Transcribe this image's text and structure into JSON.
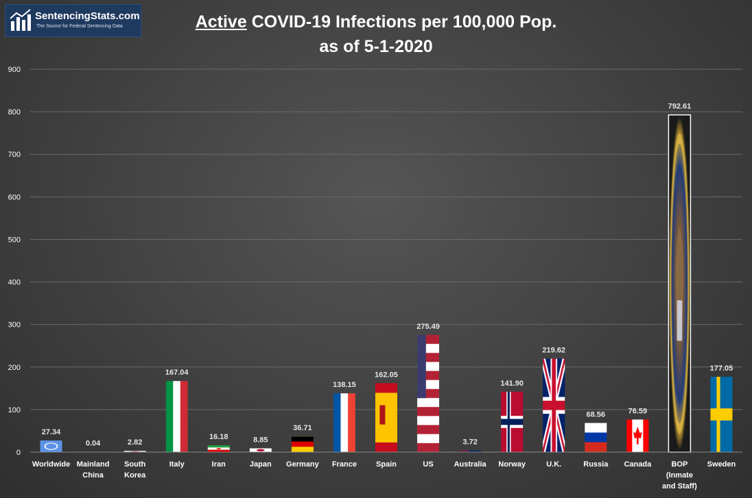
{
  "logo": {
    "name": "SentencingStats.com",
    "tagline": "The Source for Federal Sentencing Data"
  },
  "header": {
    "title_emphasis": "Active",
    "title_line1_rest": " COVID-19 Infections per 100,000 Pop.",
    "title_line2": "as of 5-1-2020"
  },
  "chart_data": {
    "type": "bar",
    "title": "Active COVID-19 Infections per 100,000 Pop. as of 5-1-2020",
    "categories": [
      "Worldwide",
      "Mainland China",
      "South Korea",
      "Italy",
      "Iran",
      "Japan",
      "Germany",
      "France",
      "Spain",
      "US",
      "Australia",
      "Norway",
      "U.K.",
      "Russia",
      "Canada",
      "BOP (Inmate and Staff)",
      "Sweden"
    ],
    "category_lines": [
      [
        "Worldwide"
      ],
      [
        "Mainland",
        "China"
      ],
      [
        "South",
        "Korea"
      ],
      [
        "Italy"
      ],
      [
        "Iran"
      ],
      [
        "Japan"
      ],
      [
        "Germany"
      ],
      [
        "France"
      ],
      [
        "Spain"
      ],
      [
        "US"
      ],
      [
        "Australia"
      ],
      [
        "Norway"
      ],
      [
        "U.K."
      ],
      [
        "Russia"
      ],
      [
        "Canada"
      ],
      [
        "BOP",
        "(Inmate",
        "and Staff)"
      ],
      [
        "Sweden"
      ]
    ],
    "values": [
      27.34,
      0.04,
      2.82,
      167.04,
      16.18,
      8.85,
      36.71,
      138.15,
      162.05,
      275.49,
      3.72,
      141.9,
      219.62,
      68.56,
      76.59,
      792.61,
      177.05
    ],
    "value_labels": [
      "27.34",
      "0.04",
      "2.82",
      "167.04",
      "16.18",
      "8.85",
      "36.71",
      "138.15",
      "162.05",
      "275.49",
      "3.72",
      "141.90",
      "219.62",
      "68.56",
      "76.59",
      "792.61",
      "177.05"
    ],
    "bar_fills": [
      "un",
      "china",
      "korea",
      "italy",
      "iran",
      "japan",
      "germany",
      "france",
      "spain",
      "us",
      "australia",
      "norway",
      "uk",
      "russia",
      "canada",
      "bop",
      "sweden"
    ],
    "ylim": [
      0,
      900
    ],
    "yticks": [
      "0",
      "100",
      "200",
      "300",
      "400",
      "500",
      "600",
      "700",
      "800",
      "900"
    ],
    "xlabel": "",
    "ylabel": "",
    "grid": true,
    "legend": "none",
    "colors": {
      "gridline": "#6a6a6a",
      "text": "#ffffff",
      "label": "#e6e6e6"
    }
  }
}
